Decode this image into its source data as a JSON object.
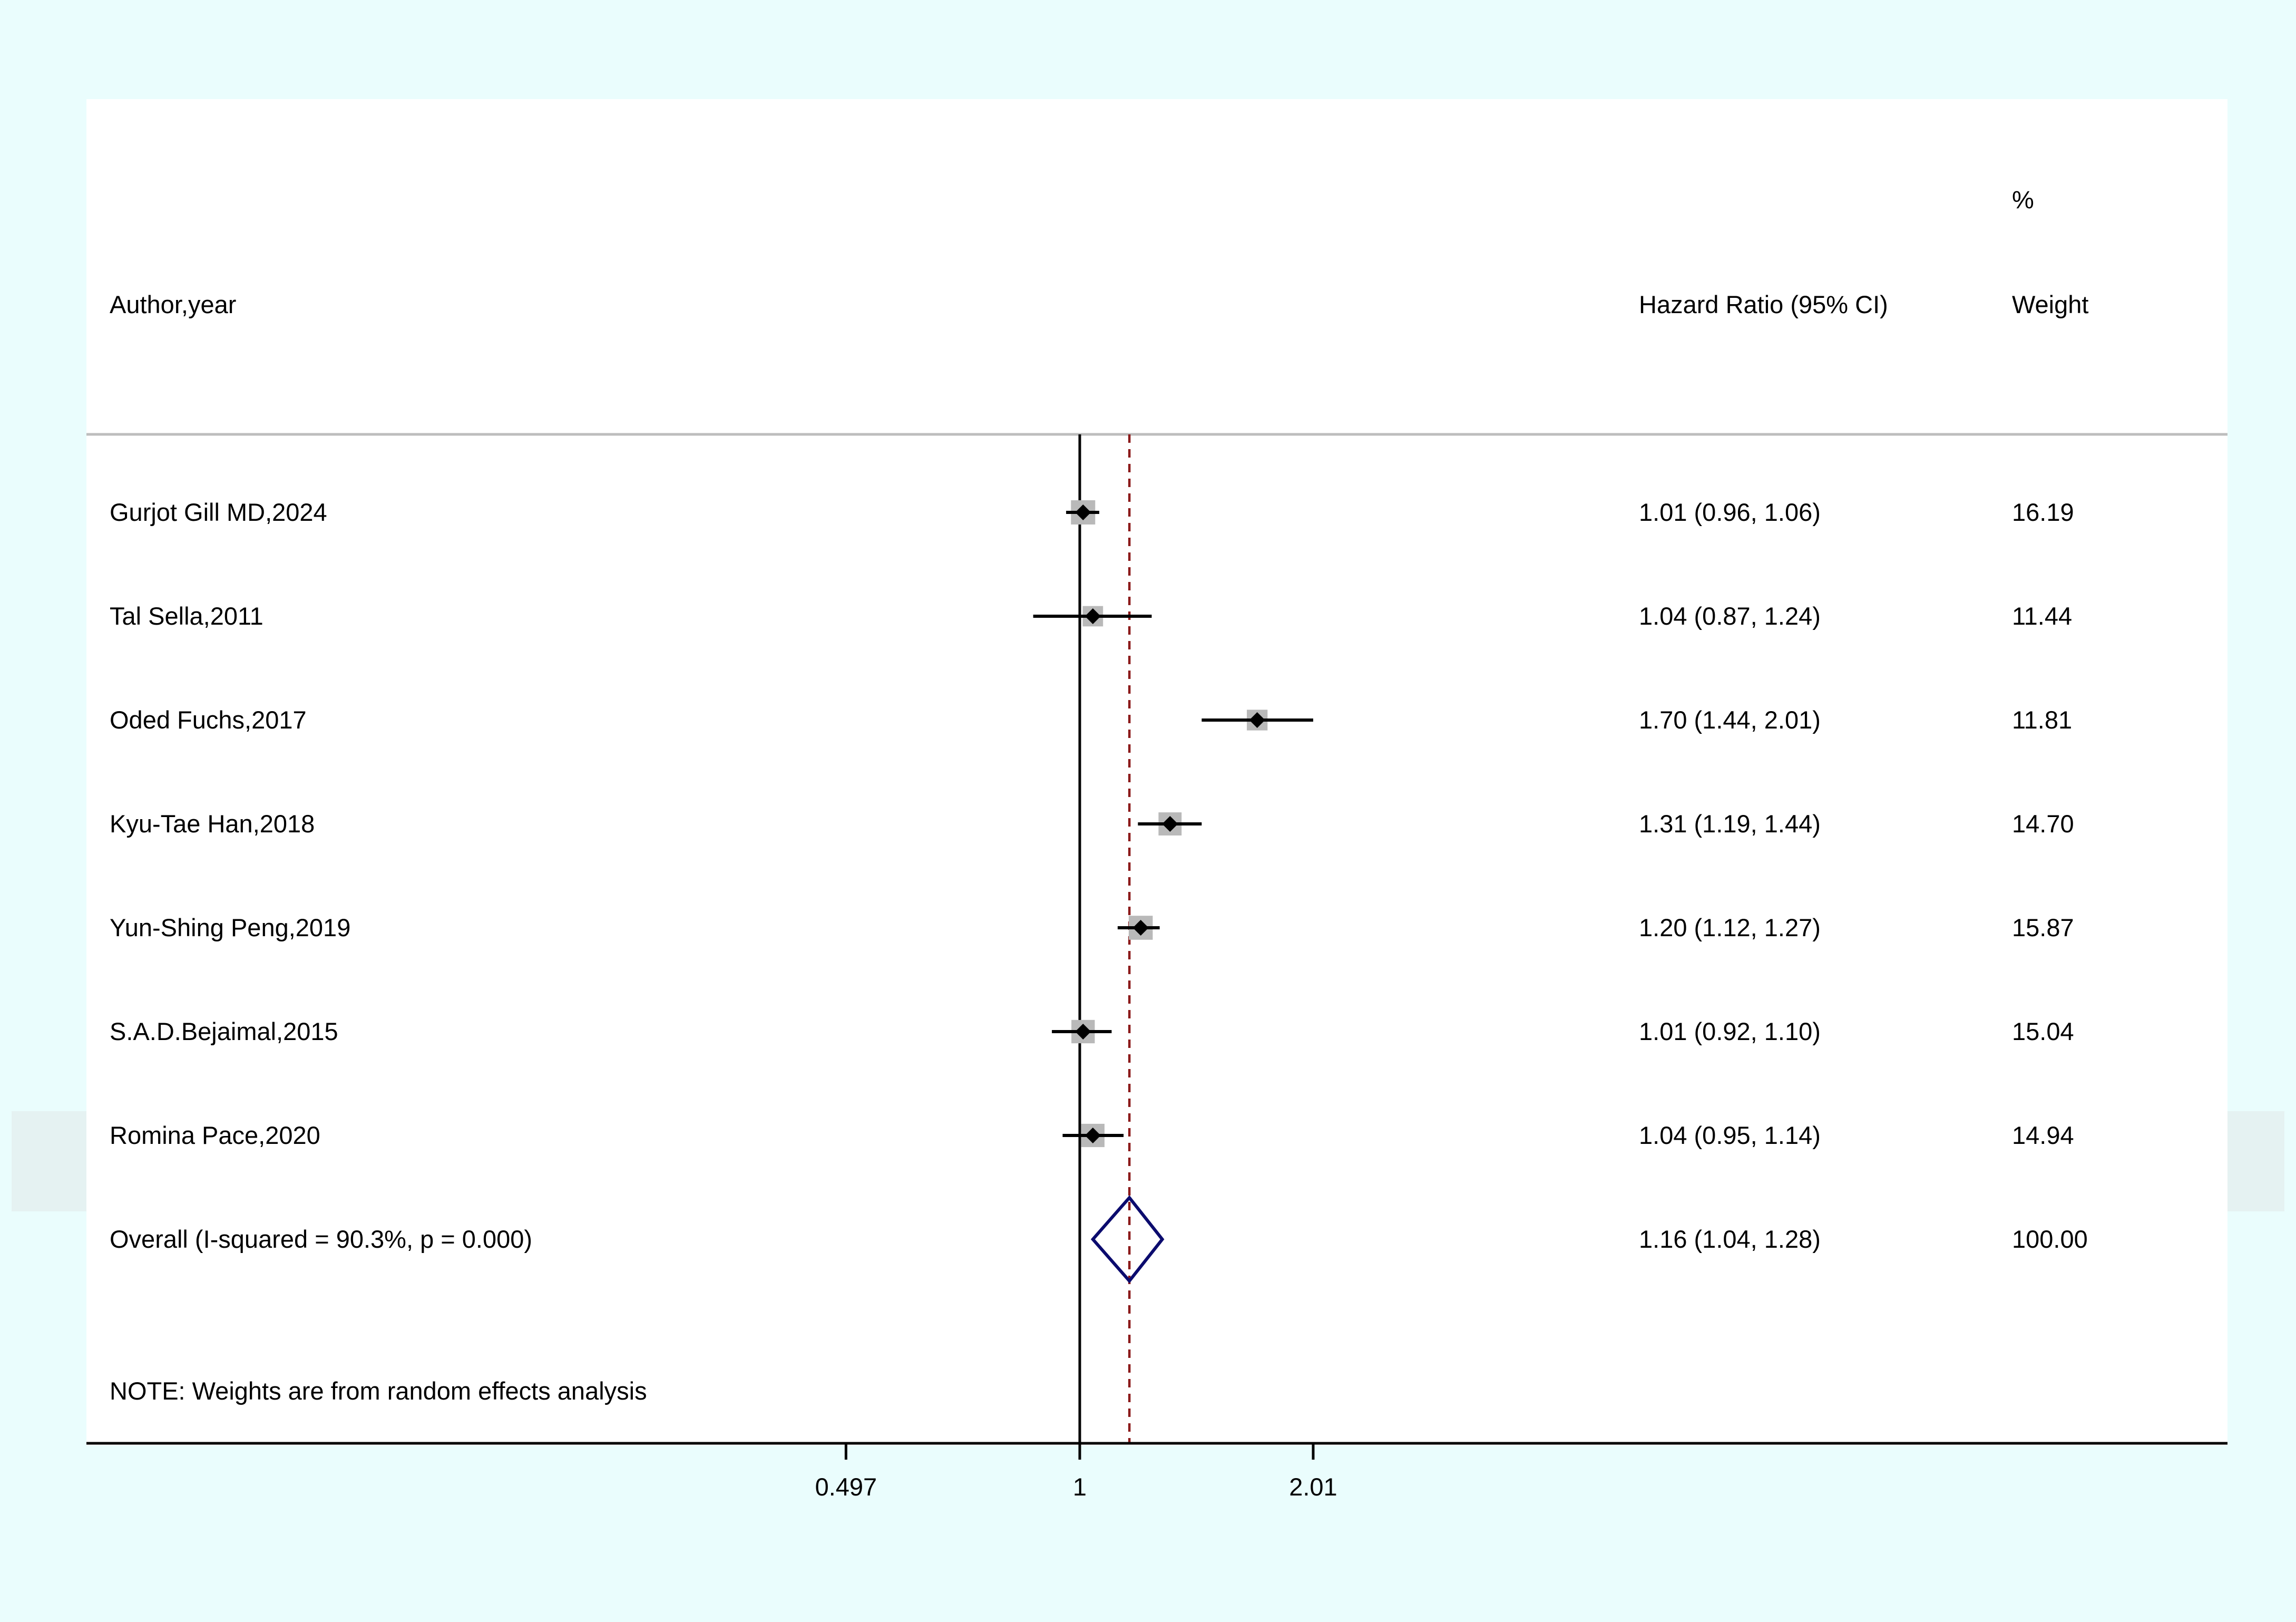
{
  "chart_data": {
    "type": "forest",
    "scale": "log",
    "headers": {
      "study": "Author,year",
      "effect": "Hazard Ratio (95% CI)",
      "weight_top": "%",
      "weight": "Weight"
    },
    "studies": [
      {
        "label": "Gurjot Gill MD,2024",
        "hr": 1.01,
        "lo": 0.96,
        "hi": 1.06,
        "ci_text": "1.01 (0.96, 1.06)",
        "weight": 16.19,
        "weight_text": "16.19"
      },
      {
        "label": "Tal Sella,2011",
        "hr": 1.04,
        "lo": 0.87,
        "hi": 1.24,
        "ci_text": "1.04 (0.87, 1.24)",
        "weight": 11.44,
        "weight_text": "11.44"
      },
      {
        "label": "Oded Fuchs,2017",
        "hr": 1.7,
        "lo": 1.44,
        "hi": 2.01,
        "ci_text": "1.70 (1.44, 2.01)",
        "weight": 11.81,
        "weight_text": "11.81"
      },
      {
        "label": "Kyu-Tae Han,2018",
        "hr": 1.31,
        "lo": 1.19,
        "hi": 1.44,
        "ci_text": "1.31 (1.19, 1.44)",
        "weight": 14.7,
        "weight_text": "14.70"
      },
      {
        "label": "Yun-Shing Peng,2019",
        "hr": 1.2,
        "lo": 1.12,
        "hi": 1.27,
        "ci_text": "1.20 (1.12, 1.27)",
        "weight": 15.87,
        "weight_text": "15.87"
      },
      {
        "label": "S.A.D.Bejaimal,2015",
        "hr": 1.01,
        "lo": 0.92,
        "hi": 1.1,
        "ci_text": "1.01 (0.92, 1.10)",
        "weight": 15.04,
        "weight_text": "15.04"
      },
      {
        "label": "Romina Pace,2020",
        "hr": 1.04,
        "lo": 0.95,
        "hi": 1.14,
        "ci_text": "1.04 (0.95, 1.14)",
        "weight": 14.94,
        "weight_text": "14.94"
      }
    ],
    "overall": {
      "label": "Overall  (I-squared = 90.3%, p = 0.000)",
      "hr": 1.16,
      "lo": 1.04,
      "hi": 1.28,
      "ci_text": "1.16 (1.04, 1.28)",
      "weight_text": "100.00"
    },
    "note": "NOTE: Weights are from random effects analysis",
    "null_value": 1,
    "x_ticks": [
      {
        "value": 0.497,
        "label": "0.497"
      },
      {
        "value": 1,
        "label": "1"
      },
      {
        "value": 2.01,
        "label": "2.01"
      }
    ],
    "colors": {
      "outer_background": "#eafdfd",
      "band": "#e5f2f2",
      "panel": "#ffffff",
      "ci_line": "#000000",
      "weight_box": "#b9b9b9",
      "point": "#000000",
      "overall_line": "#8b1a1a",
      "diamond": "#0b0b6e",
      "header_rule": "#bdbdbd"
    }
  }
}
